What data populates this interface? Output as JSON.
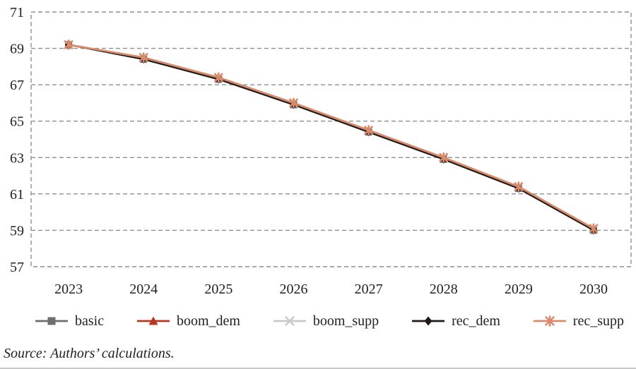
{
  "figure": {
    "background": "#ffffff",
    "text_color": "#231f20",
    "grid_color": "#8f8f8f"
  },
  "chart_data": {
    "type": "line",
    "title": "",
    "xlabel": "",
    "ylabel": "",
    "categories": [
      "2023",
      "2024",
      "2025",
      "2026",
      "2027",
      "2028",
      "2029",
      "2030"
    ],
    "series": [
      {
        "name": "basic",
        "color": "#6d6e71",
        "marker": "square",
        "values": [
          69.2,
          68.4,
          67.3,
          65.9,
          64.4,
          62.9,
          61.3,
          59.0
        ]
      },
      {
        "name": "boom_dem",
        "color": "#b5371f",
        "marker": "triangle",
        "values": [
          69.2,
          68.5,
          67.4,
          66.0,
          64.5,
          63.0,
          61.4,
          59.1
        ]
      },
      {
        "name": "boom_supp",
        "color": "#c8c9cb",
        "marker": "x",
        "values": [
          69.2,
          68.5,
          67.4,
          66.0,
          64.5,
          63.0,
          61.4,
          59.1
        ]
      },
      {
        "name": "rec_dem",
        "color": "#1f1a17",
        "marker": "diamond",
        "values": [
          69.2,
          68.4,
          67.3,
          65.9,
          64.4,
          62.9,
          61.3,
          59.0
        ]
      },
      {
        "name": "rec_supp",
        "color": "#d98a6b",
        "marker": "asterisk",
        "values": [
          69.2,
          68.5,
          67.4,
          66.0,
          64.5,
          63.0,
          61.4,
          59.1
        ]
      }
    ],
    "ylim": [
      57,
      71
    ],
    "yticks": [
      57,
      59,
      61,
      63,
      65,
      67,
      69,
      71
    ],
    "grid": "horizontal-dashed",
    "border": "dashed",
    "legend_position": "bottom"
  },
  "source_note": "Source: Authors’ calculations."
}
